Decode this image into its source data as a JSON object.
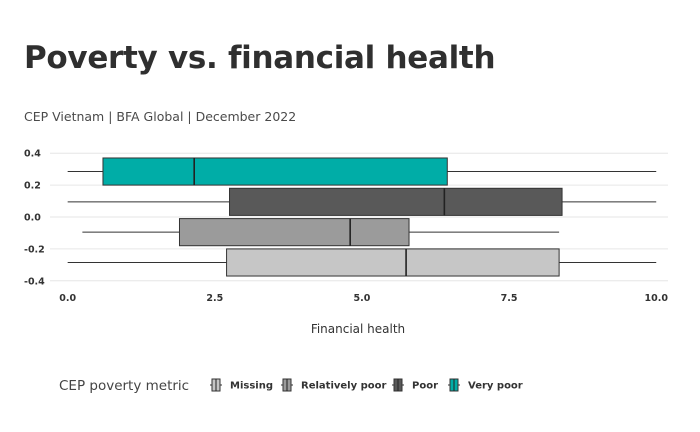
{
  "header": {
    "title": "Poverty vs. financial health",
    "subtitle": "CEP Vietnam | BFA Global | December 2022"
  },
  "chart_data": {
    "type": "boxplot",
    "orientation": "horizontal",
    "title": "Poverty vs. financial health",
    "subtitle": "CEP Vietnam | BFA Global | December 2022",
    "xlabel": "Financial health",
    "ylabel": "",
    "xlim": [
      -0.3,
      10.2
    ],
    "ylim": [
      -0.42,
      0.42
    ],
    "x_ticks": [
      0.0,
      2.5,
      5.0,
      7.5,
      10.0
    ],
    "x_tick_labels": [
      "0.0",
      "2.5",
      "5.0",
      "7.5",
      "10.0"
    ],
    "y_ticks": [
      0.4,
      0.2,
      0.0,
      -0.2,
      -0.4
    ],
    "y_tick_labels": [
      "0.4",
      "0.2",
      "0.0",
      "-0.2",
      "-0.4"
    ],
    "grid": true,
    "legend": {
      "title": "CEP poverty metric",
      "placement": "bottom"
    },
    "series": [
      {
        "name": "Missing",
        "color": "#c6c6c6",
        "y_center": -0.285,
        "y_half_height": 0.085,
        "whisker_low": 0.0,
        "q1": 2.7,
        "median": 5.75,
        "q3": 8.35,
        "whisker_high": 10.0
      },
      {
        "name": "Relatively poor",
        "color": "#9b9b9b",
        "y_center": -0.095,
        "y_half_height": 0.085,
        "whisker_low": 0.25,
        "q1": 1.9,
        "median": 4.8,
        "q3": 5.8,
        "whisker_high": 8.35
      },
      {
        "name": "Poor",
        "color": "#595959",
        "y_center": 0.095,
        "y_half_height": 0.085,
        "whisker_low": 0.0,
        "q1": 2.75,
        "median": 6.4,
        "q3": 8.4,
        "whisker_high": 10.0
      },
      {
        "name": "Very poor",
        "color": "#00ada7",
        "y_center": 0.285,
        "y_half_height": 0.085,
        "whisker_low": 0.0,
        "q1": 0.6,
        "median": 2.15,
        "q3": 6.45,
        "whisker_high": 10.0
      }
    ]
  }
}
